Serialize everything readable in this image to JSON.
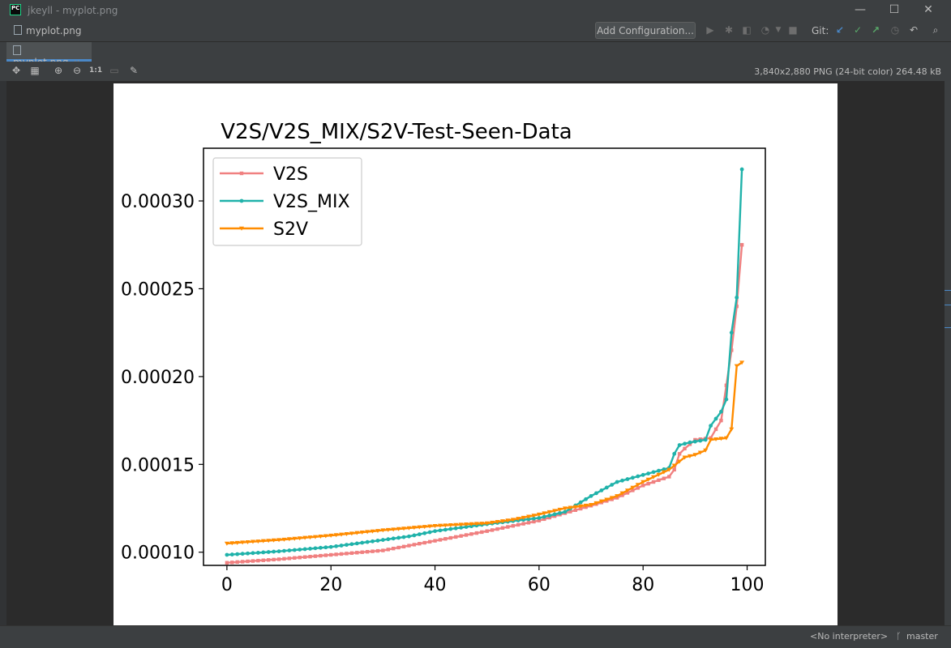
{
  "window": {
    "title": "jkeyll - myplot.png",
    "minimize_glyph": "—",
    "maximize_glyph": "☐",
    "close_glyph": "✕"
  },
  "navbar": {
    "file": "myplot.png",
    "add_config_label": "Add Configuration...",
    "git_label": "Git:",
    "icons": [
      "run-icon",
      "debug-icon",
      "coverage-icon",
      "profile-icon",
      "stop-icon",
      "git-update-icon",
      "git-commit-icon",
      "git-push-icon",
      "history-icon",
      "revert-icon",
      "search-icon"
    ]
  },
  "tabs": [
    {
      "label": "myplot.png",
      "active": true
    }
  ],
  "image_toolbar": {
    "info": "3,840x2,880 PNG (24-bit color) 264.48 kB",
    "actual_size_label": "1:1"
  },
  "status": {
    "interpreter": "<No interpreter>",
    "branch": "master"
  },
  "colors": {
    "v2s": "#f08080",
    "v2s_mix": "#20b2aa",
    "s2v": "#ff8c00",
    "accent": "#4a88c7"
  },
  "chart_data": {
    "type": "line",
    "title": "V2S/V2S_MIX/S2V-Test-Seen-Data",
    "xlabel": "",
    "ylabel": "",
    "xlim": [
      -4.5,
      103.5
    ],
    "ylim": [
      9.25e-05,
      0.00033
    ],
    "xticks": [
      0,
      20,
      40,
      60,
      80,
      100
    ],
    "yticks": [
      0.0001,
      0.00015,
      0.0002,
      0.00025,
      0.0003
    ],
    "ytick_labels": [
      "0.00010",
      "0.00015",
      "0.00020",
      "0.00025",
      "0.00030"
    ],
    "grid": false,
    "legend": "upper left",
    "series": [
      {
        "name": "V2S",
        "color": "#f08080",
        "marker": "square",
        "points": [
          [
            0,
            9.4e-05
          ],
          [
            10,
            9.6e-05
          ],
          [
            20,
            9.85e-05
          ],
          [
            30,
            0.000101
          ],
          [
            40,
            0.0001065
          ],
          [
            50,
            0.000112
          ],
          [
            60,
            0.000118
          ],
          [
            70,
            0.0001265
          ],
          [
            75,
            0.000131
          ],
          [
            80,
            0.000138
          ],
          [
            85,
            0.000143
          ],
          [
            86,
            0.000147
          ],
          [
            87,
            0.000156
          ],
          [
            88,
            0.000159
          ],
          [
            90,
            0.000164
          ],
          [
            93,
            0.000165
          ],
          [
            95,
            0.000175
          ],
          [
            96,
            0.000195
          ],
          [
            97,
            0.000215
          ],
          [
            98,
            0.00024
          ],
          [
            99,
            0.000275
          ]
        ]
      },
      {
        "name": "V2S_MIX",
        "color": "#20b2aa",
        "marker": "circle",
        "points": [
          [
            0,
            9.85e-05
          ],
          [
            10,
            0.0001005
          ],
          [
            20,
            0.000103
          ],
          [
            30,
            0.000107
          ],
          [
            35,
            0.000109
          ],
          [
            40,
            0.000112
          ],
          [
            50,
            0.000116
          ],
          [
            60,
            0.0001195
          ],
          [
            65,
            0.000123
          ],
          [
            70,
            0.000132
          ],
          [
            75,
            0.00014
          ],
          [
            80,
            0.000144
          ],
          [
            85,
            0.000148
          ],
          [
            86,
            0.000156
          ],
          [
            87,
            0.000161
          ],
          [
            89,
            0.0001625
          ],
          [
            92,
            0.000164
          ],
          [
            93,
            0.000172
          ],
          [
            95,
            0.00018
          ],
          [
            96,
            0.000187
          ],
          [
            97,
            0.000225
          ],
          [
            98,
            0.000245
          ],
          [
            99,
            0.000318
          ]
        ]
      },
      {
        "name": "S2V",
        "color": "#ff8c00",
        "marker": "triangle-down",
        "points": [
          [
            0,
            0.000105
          ],
          [
            10,
            0.000107
          ],
          [
            20,
            0.0001095
          ],
          [
            30,
            0.0001125
          ],
          [
            40,
            0.000115
          ],
          [
            50,
            0.0001165
          ],
          [
            55,
            0.0001185
          ],
          [
            60,
            0.0001215
          ],
          [
            65,
            0.000125
          ],
          [
            70,
            0.000127
          ],
          [
            75,
            0.000132
          ],
          [
            80,
            0.00014
          ],
          [
            85,
            0.000147
          ],
          [
            88,
            0.000154
          ],
          [
            90,
            0.0001555
          ],
          [
            92,
            0.000158
          ],
          [
            93,
            0.000164
          ],
          [
            96,
            0.000165
          ],
          [
            97,
            0.00017
          ],
          [
            98,
            0.000206
          ],
          [
            99,
            0.000208
          ]
        ]
      }
    ]
  }
}
